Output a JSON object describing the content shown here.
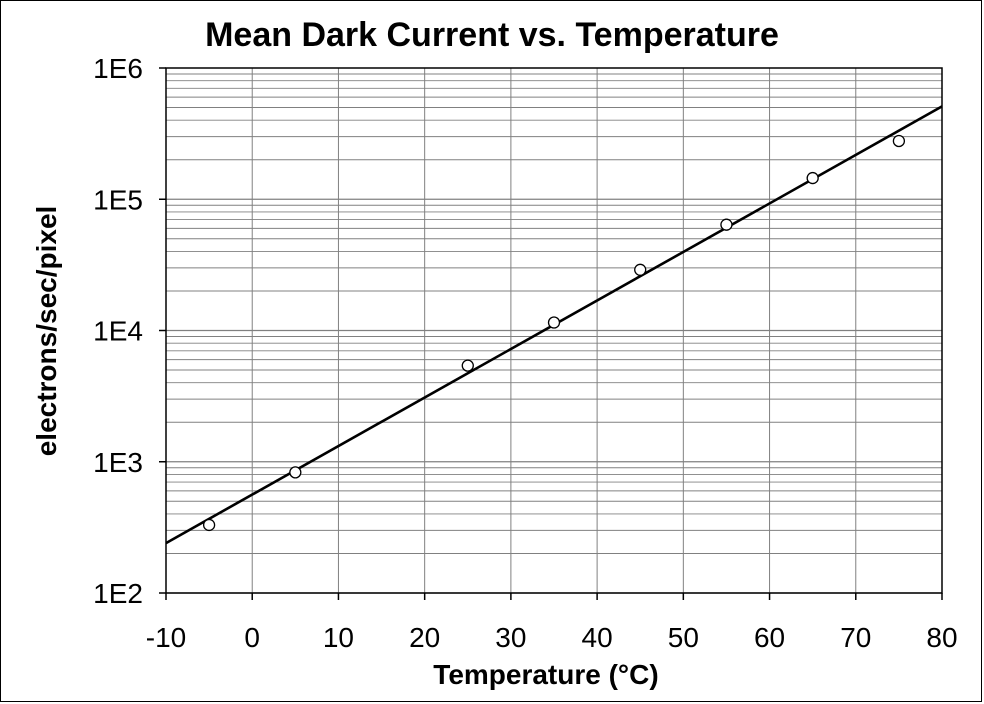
{
  "chart_data": {
    "type": "scatter",
    "title": "Mean Dark Current vs. Temperature",
    "xlabel": "Temperature (°C)",
    "ylabel": "electrons/sec/pixel",
    "xlim": [
      -10,
      80
    ],
    "ylim": [
      100,
      1000000
    ],
    "yscale": "log",
    "x_ticks": [
      -10,
      0,
      10,
      20,
      30,
      40,
      50,
      60,
      70,
      80
    ],
    "x_tick_labels": [
      "-10",
      "0",
      "10",
      "20",
      "30",
      "40",
      "50",
      "60",
      "70",
      "80"
    ],
    "y_ticks": [
      100,
      1000,
      10000,
      100000,
      1000000
    ],
    "y_tick_labels": [
      "1E2",
      "1E3",
      "1E4",
      "1E5",
      "1E6"
    ],
    "grid": true,
    "series": [
      {
        "kind": "points",
        "marker": "open-circle",
        "x": [
          -5,
          5,
          25,
          35,
          45,
          55,
          65,
          75
        ],
        "y": [
          330,
          830,
          5400,
          11500,
          29000,
          64000,
          145000,
          278000
        ]
      },
      {
        "kind": "fit-line",
        "x": [
          -10,
          80
        ],
        "y": [
          240,
          510000
        ]
      }
    ],
    "colors": {
      "line": "#000000",
      "grid": "#808080",
      "marker_stroke": "#000000"
    }
  }
}
